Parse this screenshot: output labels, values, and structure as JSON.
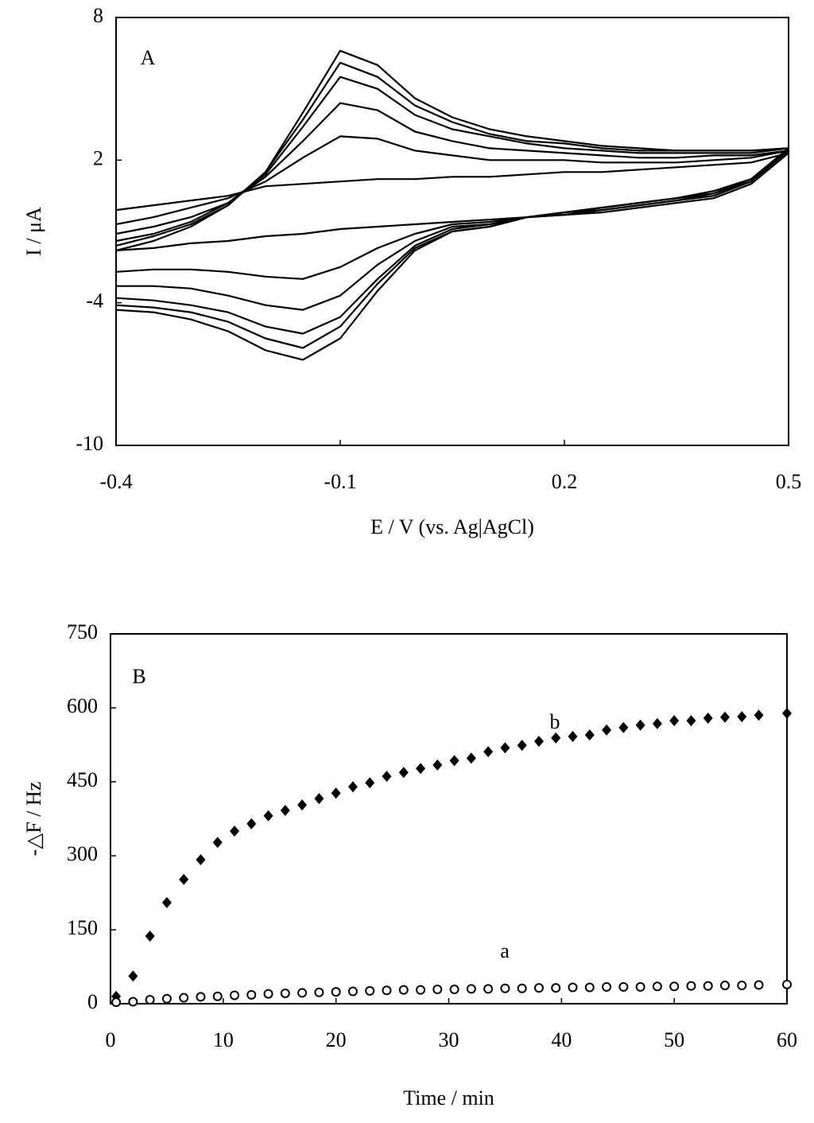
{
  "chart_data": [
    {
      "type": "line",
      "annotation": "A",
      "x_label": "E / V (vs. Ag|AgCl)",
      "y_label": "I / μA",
      "xlim": [
        -0.4,
        0.5
      ],
      "xticks": [
        -0.4,
        -0.1,
        0.2,
        0.5
      ],
      "ylim": [
        -10,
        8
      ],
      "yticks": [
        -10,
        -4,
        2,
        8
      ],
      "x": [
        -0.4,
        -0.35,
        -0.3,
        -0.25,
        -0.2,
        -0.15,
        -0.1,
        -0.05,
        0,
        0.05,
        0.1,
        0.15,
        0.2,
        0.25,
        0.3,
        0.35,
        0.4,
        0.45,
        0.5,
        0.45,
        0.4,
        0.35,
        0.3,
        0.25,
        0.2,
        0.15,
        0.1,
        0.05,
        0,
        -0.05,
        -0.1,
        -0.15,
        -0.2,
        -0.25,
        -0.3,
        -0.35,
        -0.4
      ],
      "series": [
        {
          "color": "#000000",
          "values": [
            -0.1,
            0.1,
            0.3,
            0.5,
            0.9,
            1.0,
            1.1,
            1.2,
            1.2,
            1.3,
            1.3,
            1.4,
            1.5,
            1.5,
            1.6,
            1.7,
            1.8,
            1.9,
            2.3,
            1.0,
            0.4,
            0.2,
            0.0,
            -0.2,
            -0.3,
            -0.4,
            -0.5,
            -0.6,
            -0.7,
            -0.8,
            -0.9,
            -1.1,
            -1.2,
            -1.4,
            -1.5,
            -1.7,
            -1.8
          ]
        },
        {
          "color": "#000000",
          "values": [
            -0.7,
            -0.4,
            0.0,
            0.4,
            1.1,
            2.1,
            3.0,
            2.9,
            2.4,
            2.2,
            2.0,
            2.0,
            2.0,
            1.9,
            1.9,
            1.9,
            2.0,
            2.1,
            2.4,
            1.1,
            0.5,
            0.3,
            0.1,
            -0.1,
            -0.3,
            -0.4,
            -0.6,
            -0.7,
            -1.1,
            -1.7,
            -2.5,
            -3.0,
            -2.9,
            -2.7,
            -2.6,
            -2.6,
            -2.7
          ]
        },
        {
          "color": "#000000",
          "values": [
            -1.1,
            -0.8,
            -0.4,
            0.2,
            1.3,
            2.8,
            4.4,
            4.1,
            3.2,
            2.8,
            2.5,
            2.4,
            2.3,
            2.2,
            2.1,
            2.1,
            2.2,
            2.2,
            2.4,
            1.1,
            0.6,
            0.3,
            0.1,
            -0.1,
            -0.2,
            -0.4,
            -0.7,
            -0.8,
            -1.4,
            -2.4,
            -3.7,
            -4.3,
            -4.1,
            -3.7,
            -3.4,
            -3.3,
            -3.3
          ]
        },
        {
          "color": "#000000",
          "values": [
            -1.4,
            -1.1,
            -0.6,
            0.2,
            1.4,
            3.4,
            5.5,
            5.0,
            3.9,
            3.3,
            3.0,
            2.7,
            2.5,
            2.4,
            2.3,
            2.3,
            2.3,
            2.3,
            2.5,
            1.2,
            0.6,
            0.4,
            0.2,
            0.0,
            -0.2,
            -0.4,
            -0.7,
            -0.9,
            -1.6,
            -3.0,
            -4.6,
            -5.3,
            -5.0,
            -4.4,
            -4.1,
            -3.9,
            -3.8
          ]
        },
        {
          "color": "#000000",
          "values": [
            -1.6,
            -1.2,
            -0.7,
            0.1,
            1.5,
            3.7,
            6.1,
            5.5,
            4.3,
            3.6,
            3.1,
            2.8,
            2.7,
            2.5,
            2.4,
            2.4,
            2.4,
            2.4,
            2.5,
            1.2,
            0.7,
            0.4,
            0.2,
            0.0,
            -0.2,
            -0.4,
            -0.8,
            -1.0,
            -1.7,
            -3.2,
            -5.0,
            -5.9,
            -5.5,
            -4.8,
            -4.4,
            -4.2,
            -4.1
          ]
        },
        {
          "color": "#000000",
          "values": [
            -1.8,
            -1.4,
            -0.8,
            0.1,
            1.5,
            4.0,
            6.6,
            6.0,
            4.6,
            3.8,
            3.3,
            3.0,
            2.8,
            2.6,
            2.5,
            2.4,
            2.4,
            2.4,
            2.5,
            1.2,
            0.7,
            0.4,
            0.2,
            0.0,
            -0.2,
            -0.4,
            -0.8,
            -1.0,
            -1.8,
            -3.5,
            -5.5,
            -6.4,
            -6.0,
            -5.2,
            -4.7,
            -4.4,
            -4.3
          ]
        }
      ]
    },
    {
      "type": "scatter",
      "annotation": "B",
      "x_label": "Time / min",
      "y_label": "-△F / Hz",
      "xlim": [
        0,
        60
      ],
      "xticks": [
        0,
        10,
        20,
        30,
        40,
        50,
        60
      ],
      "ylim": [
        0,
        750
      ],
      "yticks": [
        0,
        150,
        300,
        450,
        600,
        750
      ],
      "x": [
        0.5,
        2,
        3.5,
        5,
        6.5,
        8,
        9.5,
        11,
        12.5,
        14,
        15.5,
        17,
        18.5,
        20,
        21.5,
        23,
        24.5,
        26,
        27.5,
        29,
        30.5,
        32,
        33.5,
        35,
        36.5,
        38,
        39.5,
        41,
        42.5,
        44,
        45.5,
        47,
        48.5,
        50,
        51.5,
        53,
        54.5,
        56,
        57.5,
        60
      ],
      "series": [
        {
          "name": "b",
          "color": "#000000",
          "marker": "diamond",
          "values": [
            15,
            56,
            137,
            205,
            252,
            292,
            327,
            350,
            365,
            381,
            392,
            403,
            416,
            427,
            440,
            448,
            461,
            469,
            477,
            484,
            493,
            498,
            511,
            519,
            524,
            532,
            539,
            542,
            545,
            555,
            560,
            565,
            568,
            574,
            574,
            579,
            581,
            582,
            585,
            589
          ]
        },
        {
          "name": "a",
          "color": "#000000",
          "marker": "circle-open",
          "values": [
            3,
            4,
            8,
            10,
            12,
            14,
            15,
            17,
            18,
            20,
            21,
            22,
            23,
            24,
            25,
            26,
            27,
            28,
            28,
            29,
            29,
            30,
            30,
            31,
            31,
            32,
            32,
            33,
            33,
            34,
            34,
            34,
            35,
            35,
            36,
            36,
            37,
            37,
            38,
            39
          ]
        }
      ]
    }
  ]
}
